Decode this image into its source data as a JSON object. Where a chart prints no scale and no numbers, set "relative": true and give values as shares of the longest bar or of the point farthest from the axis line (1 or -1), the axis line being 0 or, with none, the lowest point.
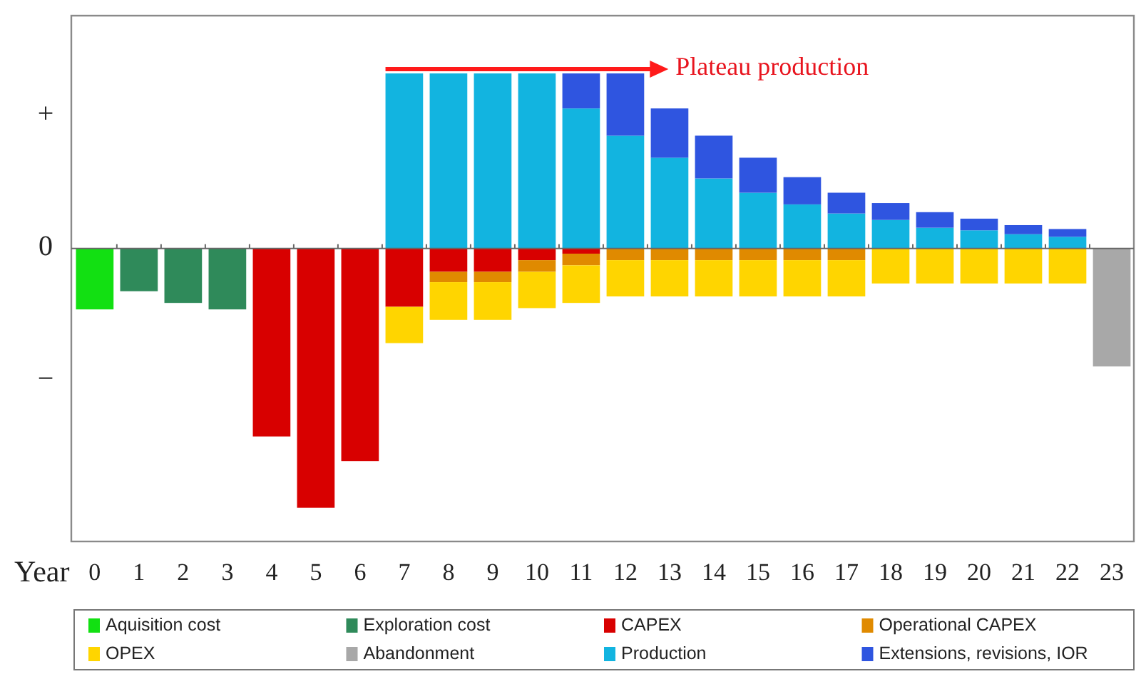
{
  "chart_data": {
    "type": "bar",
    "stacked": true,
    "relative": true,
    "xlabel": "Year",
    "x": [
      0,
      1,
      2,
      3,
      4,
      5,
      6,
      7,
      8,
      9,
      10,
      11,
      12,
      13,
      14,
      15,
      16,
      17,
      18,
      19,
      20,
      21,
      22,
      23
    ],
    "xlim": [
      -0.53,
      23.5
    ],
    "xticks": [
      0,
      1,
      2,
      3,
      4,
      5,
      6,
      7,
      8,
      9,
      10,
      11,
      12,
      13,
      14,
      15,
      16,
      17,
      18,
      19,
      20,
      21,
      22,
      23
    ],
    "series": [
      {
        "name": "Aquisition cost",
        "color": "#12e012",
        "values": [
          -0.235,
          null,
          null,
          null,
          null,
          null,
          null,
          null,
          null,
          null,
          null,
          null,
          null,
          null,
          null,
          null,
          null,
          null,
          null,
          null,
          null,
          null,
          null,
          null
        ]
      },
      {
        "name": "Exploration cost",
        "color": "#2f8a5a",
        "values": [
          null,
          -0.165,
          -0.21,
          -0.235,
          null,
          null,
          null,
          null,
          null,
          null,
          null,
          null,
          null,
          null,
          null,
          null,
          null,
          null,
          null,
          null,
          null,
          null,
          null,
          null
        ]
      },
      {
        "name": "CAPEX",
        "color": "#d80000",
        "values": [
          null,
          null,
          null,
          null,
          -0.725,
          -1,
          -0.82,
          -0.225,
          -0.09,
          -0.09,
          -0.045,
          -0.02,
          null,
          null,
          null,
          null,
          null,
          null,
          null,
          null,
          null,
          null,
          null,
          null
        ]
      },
      {
        "name": "Operational CAPEX",
        "color": "#e08a00",
        "values": [
          null,
          null,
          null,
          null,
          null,
          null,
          null,
          null,
          -0.04,
          -0.04,
          -0.045,
          -0.045,
          -0.045,
          -0.045,
          -0.045,
          -0.045,
          -0.045,
          -0.045,
          null,
          null,
          null,
          null,
          null,
          null
        ]
      },
      {
        "name": "OPEX",
        "color": "#ffd500",
        "values": [
          null,
          null,
          null,
          null,
          null,
          null,
          null,
          -0.14,
          -0.145,
          -0.145,
          -0.14,
          -0.145,
          -0.14,
          -0.14,
          -0.14,
          -0.14,
          -0.14,
          -0.14,
          -0.135,
          -0.135,
          -0.135,
          -0.135,
          -0.135,
          null
        ]
      },
      {
        "name": "Abandonment",
        "color": "#a8a8a8",
        "values": [
          null,
          null,
          null,
          null,
          null,
          null,
          null,
          null,
          null,
          null,
          null,
          null,
          null,
          null,
          null,
          null,
          null,
          null,
          null,
          null,
          null,
          null,
          null,
          -0.455
        ]
      },
      {
        "name": "Production",
        "color": "#12b4e0",
        "values": [
          null,
          null,
          null,
          null,
          null,
          null,
          null,
          0.675,
          0.675,
          0.675,
          0.675,
          0.54,
          0.435,
          0.35,
          0.27,
          0.215,
          0.17,
          0.135,
          0.11,
          0.08,
          0.07,
          0.055,
          0.045,
          null
        ]
      },
      {
        "name": "Extensions, revisions, IOR",
        "color": "#2f55e0",
        "values": [
          null,
          null,
          null,
          null,
          null,
          null,
          null,
          null,
          null,
          null,
          null,
          0.135,
          0.24,
          0.19,
          0.165,
          0.135,
          0.105,
          0.08,
          0.065,
          0.06,
          0.045,
          0.035,
          0.03,
          null
        ]
      }
    ],
    "legend": "bottom",
    "annotations": [
      {
        "text": "Plateau production",
        "x": 12,
        "y": 0.675
      },
      "+",
      "0",
      "−"
    ]
  }
}
